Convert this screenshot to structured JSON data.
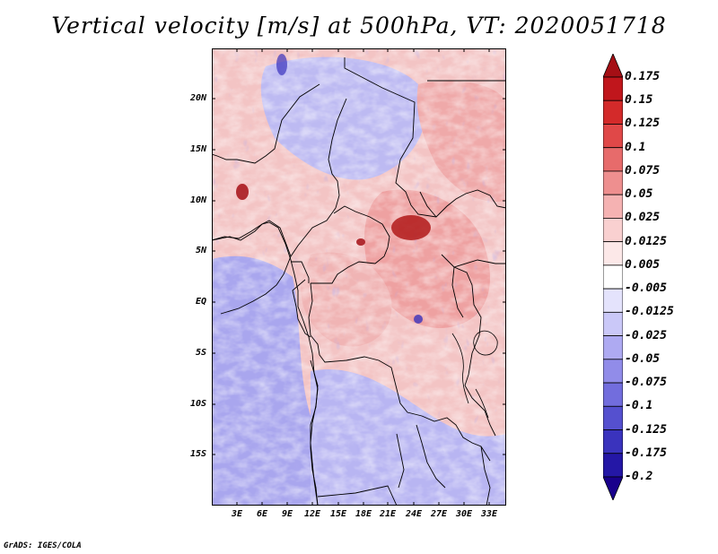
{
  "title": "Vertical velocity [m/s] at 500hPa, VT: 2020051718",
  "credit": "GrADS: IGES/COLA",
  "latitude_labels": [
    "20N",
    "15N",
    "10N",
    "5N",
    "EQ",
    "5S",
    "10S",
    "15S"
  ],
  "longitude_labels": [
    "3E",
    "6E",
    "9E",
    "12E",
    "15E",
    "18E",
    "21E",
    "24E",
    "27E",
    "30E",
    "33E"
  ],
  "colorbar": {
    "labels": [
      "0.175",
      "0.15",
      "0.125",
      "0.1",
      "0.075",
      "0.05",
      "0.025",
      "0.0125",
      "0.005",
      "-0.005",
      "-0.0125",
      "-0.025",
      "-0.05",
      "-0.075",
      "-0.1",
      "-0.125",
      "-0.175",
      "-0.2"
    ],
    "colors": [
      "#a50f15",
      "#c0161c",
      "#d32a2a",
      "#e04848",
      "#e76b6b",
      "#ee8f8f",
      "#f5b2b2",
      "#f9d0d0",
      "#fce8e8",
      "#ffffff",
      "#e4e3fc",
      "#cac8f8",
      "#aeaaf2",
      "#918ce9",
      "#726ddd",
      "#5550cf",
      "#3a33bd",
      "#2417a6",
      "#19008c"
    ]
  },
  "colors": {
    "positive": "#e03535",
    "negative": "#6b66e0",
    "borders": "#000000"
  }
}
